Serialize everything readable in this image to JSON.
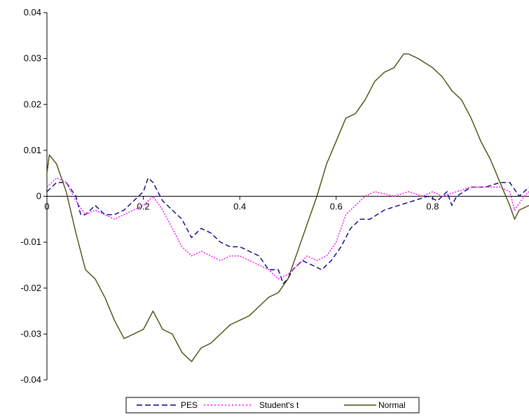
{
  "chart_data": {
    "type": "line",
    "title": "",
    "xlabel": "",
    "ylabel": "",
    "xlim": [
      0,
      1
    ],
    "ylim": [
      -0.04,
      0.04
    ],
    "x_ticks": [
      0,
      0.2,
      0.4,
      0.6,
      0.8
    ],
    "x_tick_labels": [
      "0",
      "0.2",
      "0.4",
      "0.6",
      "0.8"
    ],
    "y_ticks": [
      0.04,
      0.03,
      0.02,
      0.01,
      0,
      -0.01,
      -0.02,
      -0.03,
      -0.04
    ],
    "y_tick_labels": [
      "0.04",
      "0.03",
      "0.02",
      "0.01",
      "0",
      "-0.01",
      "-0.02",
      "-0.03",
      "-0.04"
    ],
    "grid": false,
    "legend_position": "bottom",
    "series": [
      {
        "name": "PES",
        "color": "#000080",
        "dash": "dashed",
        "points": [
          [
            0,
            0.001
          ],
          [
            0.02,
            0.003
          ],
          [
            0.04,
            0.003
          ],
          [
            0.06,
            0.0
          ],
          [
            0.07,
            -0.004
          ],
          [
            0.08,
            -0.004
          ],
          [
            0.09,
            -0.003
          ],
          [
            0.1,
            -0.002
          ],
          [
            0.12,
            -0.004
          ],
          [
            0.14,
            -0.004
          ],
          [
            0.16,
            -0.003
          ],
          [
            0.18,
            -0.001
          ],
          [
            0.2,
            0.001
          ],
          [
            0.21,
            0.004
          ],
          [
            0.22,
            0.003
          ],
          [
            0.24,
            -0.001
          ],
          [
            0.26,
            -0.003
          ],
          [
            0.28,
            -0.005
          ],
          [
            0.3,
            -0.009
          ],
          [
            0.32,
            -0.007
          ],
          [
            0.34,
            -0.008
          ],
          [
            0.36,
            -0.01
          ],
          [
            0.38,
            -0.011
          ],
          [
            0.4,
            -0.011
          ],
          [
            0.42,
            -0.012
          ],
          [
            0.44,
            -0.013
          ],
          [
            0.46,
            -0.016
          ],
          [
            0.48,
            -0.016
          ],
          [
            0.49,
            -0.019
          ],
          [
            0.5,
            -0.018
          ],
          [
            0.51,
            -0.016
          ],
          [
            0.53,
            -0.014
          ],
          [
            0.55,
            -0.015
          ],
          [
            0.57,
            -0.016
          ],
          [
            0.59,
            -0.014
          ],
          [
            0.61,
            -0.011
          ],
          [
            0.63,
            -0.007
          ],
          [
            0.65,
            -0.005
          ],
          [
            0.67,
            -0.005
          ],
          [
            0.7,
            -0.003
          ],
          [
            0.73,
            -0.002
          ],
          [
            0.76,
            -0.001
          ],
          [
            0.79,
            0.0
          ],
          [
            0.81,
            -0.001
          ],
          [
            0.83,
            0.001
          ],
          [
            0.84,
            -0.002
          ],
          [
            0.85,
            0.0
          ],
          [
            0.88,
            0.002
          ],
          [
            0.91,
            0.002
          ],
          [
            0.94,
            0.003
          ],
          [
            0.96,
            0.003
          ],
          [
            0.98,
            0.0
          ],
          [
            1.0,
            0.002
          ]
        ]
      },
      {
        "name": "Student's t",
        "color": "#ff00ff",
        "dash": "dotted",
        "points": [
          [
            0,
            0.002
          ],
          [
            0.02,
            0.004
          ],
          [
            0.04,
            0.003
          ],
          [
            0.06,
            -0.001
          ],
          [
            0.08,
            -0.004
          ],
          [
            0.1,
            -0.003
          ],
          [
            0.12,
            -0.004
          ],
          [
            0.14,
            -0.005
          ],
          [
            0.16,
            -0.004
          ],
          [
            0.18,
            -0.003
          ],
          [
            0.2,
            -0.002
          ],
          [
            0.22,
            0.0
          ],
          [
            0.24,
            -0.003
          ],
          [
            0.26,
            -0.007
          ],
          [
            0.28,
            -0.011
          ],
          [
            0.3,
            -0.013
          ],
          [
            0.32,
            -0.012
          ],
          [
            0.34,
            -0.013
          ],
          [
            0.36,
            -0.014
          ],
          [
            0.38,
            -0.013
          ],
          [
            0.4,
            -0.013
          ],
          [
            0.42,
            -0.014
          ],
          [
            0.44,
            -0.015
          ],
          [
            0.46,
            -0.016
          ],
          [
            0.48,
            -0.018
          ],
          [
            0.5,
            -0.017
          ],
          [
            0.52,
            -0.015
          ],
          [
            0.54,
            -0.013
          ],
          [
            0.56,
            -0.014
          ],
          [
            0.58,
            -0.013
          ],
          [
            0.6,
            -0.01
          ],
          [
            0.62,
            -0.004
          ],
          [
            0.64,
            -0.002
          ],
          [
            0.66,
            0.0
          ],
          [
            0.68,
            0.001
          ],
          [
            0.72,
            0.0
          ],
          [
            0.75,
            0.001
          ],
          [
            0.78,
            0.0
          ],
          [
            0.8,
            0.001
          ],
          [
            0.82,
            0.0
          ],
          [
            0.85,
            0.001
          ],
          [
            0.88,
            0.002
          ],
          [
            0.91,
            0.002
          ],
          [
            0.94,
            0.002
          ],
          [
            0.96,
            0.001
          ],
          [
            0.97,
            -0.003
          ],
          [
            0.99,
            0.0
          ],
          [
            1.0,
            0.001
          ]
        ]
      },
      {
        "name": "Normal",
        "color": "#4a4a0a",
        "dash": "solid",
        "points": [
          [
            0,
            0.005
          ],
          [
            0.005,
            0.009
          ],
          [
            0.02,
            0.007
          ],
          [
            0.04,
            0.001
          ],
          [
            0.06,
            -0.008
          ],
          [
            0.08,
            -0.016
          ],
          [
            0.1,
            -0.018
          ],
          [
            0.12,
            -0.022
          ],
          [
            0.14,
            -0.027
          ],
          [
            0.16,
            -0.031
          ],
          [
            0.18,
            -0.03
          ],
          [
            0.2,
            -0.029
          ],
          [
            0.22,
            -0.025
          ],
          [
            0.24,
            -0.029
          ],
          [
            0.26,
            -0.03
          ],
          [
            0.28,
            -0.034
          ],
          [
            0.3,
            -0.036
          ],
          [
            0.32,
            -0.033
          ],
          [
            0.34,
            -0.032
          ],
          [
            0.36,
            -0.03
          ],
          [
            0.38,
            -0.028
          ],
          [
            0.4,
            -0.027
          ],
          [
            0.42,
            -0.026
          ],
          [
            0.44,
            -0.024
          ],
          [
            0.46,
            -0.022
          ],
          [
            0.48,
            -0.021
          ],
          [
            0.5,
            -0.018
          ],
          [
            0.52,
            -0.012
          ],
          [
            0.54,
            -0.006
          ],
          [
            0.56,
            0.0
          ],
          [
            0.58,
            0.007
          ],
          [
            0.6,
            0.012
          ],
          [
            0.62,
            0.017
          ],
          [
            0.64,
            0.018
          ],
          [
            0.66,
            0.021
          ],
          [
            0.68,
            0.025
          ],
          [
            0.7,
            0.027
          ],
          [
            0.72,
            0.028
          ],
          [
            0.74,
            0.031
          ],
          [
            0.75,
            0.031
          ],
          [
            0.77,
            0.03
          ],
          [
            0.8,
            0.028
          ],
          [
            0.82,
            0.026
          ],
          [
            0.84,
            0.023
          ],
          [
            0.86,
            0.021
          ],
          [
            0.88,
            0.017
          ],
          [
            0.9,
            0.012
          ],
          [
            0.92,
            0.008
          ],
          [
            0.94,
            0.003
          ],
          [
            0.96,
            -0.002
          ],
          [
            0.97,
            -0.005
          ],
          [
            0.98,
            -0.003
          ],
          [
            1.0,
            -0.002
          ]
        ]
      }
    ]
  },
  "legend": {
    "items": [
      {
        "label": "PES"
      },
      {
        "label": "Student's t"
      },
      {
        "label": "Normal"
      }
    ]
  }
}
